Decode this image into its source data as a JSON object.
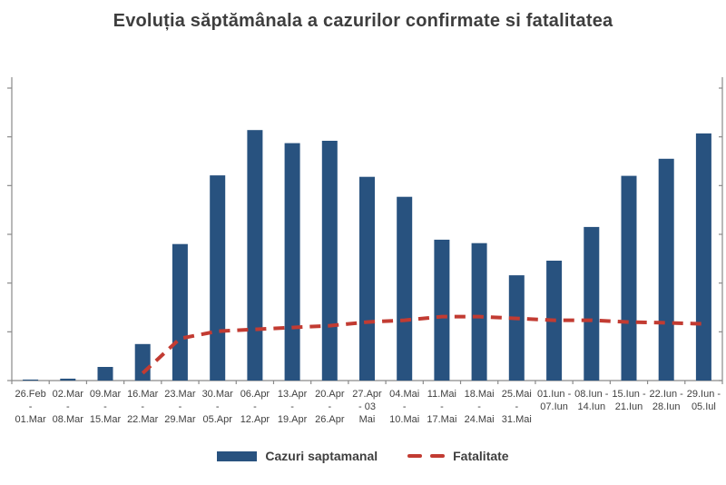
{
  "page": {
    "title": "Evoluția săptămânala a cazurilor confirmate si fatalitatea"
  },
  "legend": {
    "bars": "Cazuri saptamanal",
    "line": "Fatalitate"
  },
  "colors": {
    "bar": "#28527f",
    "line": "#c23b32",
    "axis": "#8a8a8a",
    "text": "#3f3f3f",
    "title": "#3e3e3e",
    "background": "#ffffff"
  },
  "chart_data": {
    "type": "bar",
    "overlay": "dashed-line on secondary axis",
    "title": "Evoluția săptămânala a cazurilor confirmate si fatalitatea",
    "legend_position": "bottom",
    "grid": false,
    "categories": [
      [
        "26.Feb",
        "-",
        "01.Mar"
      ],
      [
        "02.Mar",
        "-",
        "08.Mar"
      ],
      [
        "09.Mar",
        "-",
        "15.Mar"
      ],
      [
        "16.Mar",
        "-",
        "22.Mar"
      ],
      [
        "23.Mar",
        "-",
        "29.Mar"
      ],
      [
        "30.Mar",
        "-",
        "05.Apr"
      ],
      [
        "06.Apr",
        "-",
        "12.Apr"
      ],
      [
        "13.Apr",
        "-",
        "19.Apr"
      ],
      [
        "20.Apr",
        "-",
        "26.Apr"
      ],
      [
        "27.Apr",
        "- 03",
        "Mai"
      ],
      [
        "04.Mai",
        "-",
        "10.Mai"
      ],
      [
        "11.Mai",
        "-",
        "17.Mai"
      ],
      [
        "18.Mai",
        "-",
        "24.Mai"
      ],
      [
        "25.Mai",
        "-",
        "31.Mai"
      ],
      [
        "01.Iun -",
        "07.Iun"
      ],
      [
        "08.Iun -",
        "14.Iun"
      ],
      [
        "15.Iun -",
        "21.Iun"
      ],
      [
        "22.Iun -",
        "28.Iun"
      ],
      [
        "29.Iun -",
        "05.Iul"
      ]
    ],
    "series": [
      {
        "name": "Cazuri saptamanal",
        "type": "bar",
        "yaxis": "left",
        "values": [
          10,
          20,
          140,
          375,
          1400,
          2105,
          2570,
          2435,
          2460,
          2090,
          1885,
          1445,
          1410,
          1080,
          1230,
          1575,
          2100,
          2275,
          2535
        ]
      },
      {
        "name": "Fatalitate",
        "type": "line",
        "style": "dashed",
        "yaxis": "right",
        "values": [
          null,
          null,
          null,
          0.2,
          1.15,
          1.35,
          1.4,
          1.45,
          1.5,
          1.6,
          1.65,
          1.75,
          1.75,
          1.7,
          1.65,
          1.65,
          1.6,
          1.58,
          1.55
        ]
      }
    ],
    "left_axis": {
      "min": 0,
      "max": 3000,
      "grid_step": 500,
      "tick_labels_visible": false,
      "values_estimated_from_pixels": true
    },
    "right_axis": {
      "min": 0,
      "max": 8,
      "unit": "%",
      "tick_labels_visible": false,
      "values_estimated_from_pixels": true
    }
  }
}
